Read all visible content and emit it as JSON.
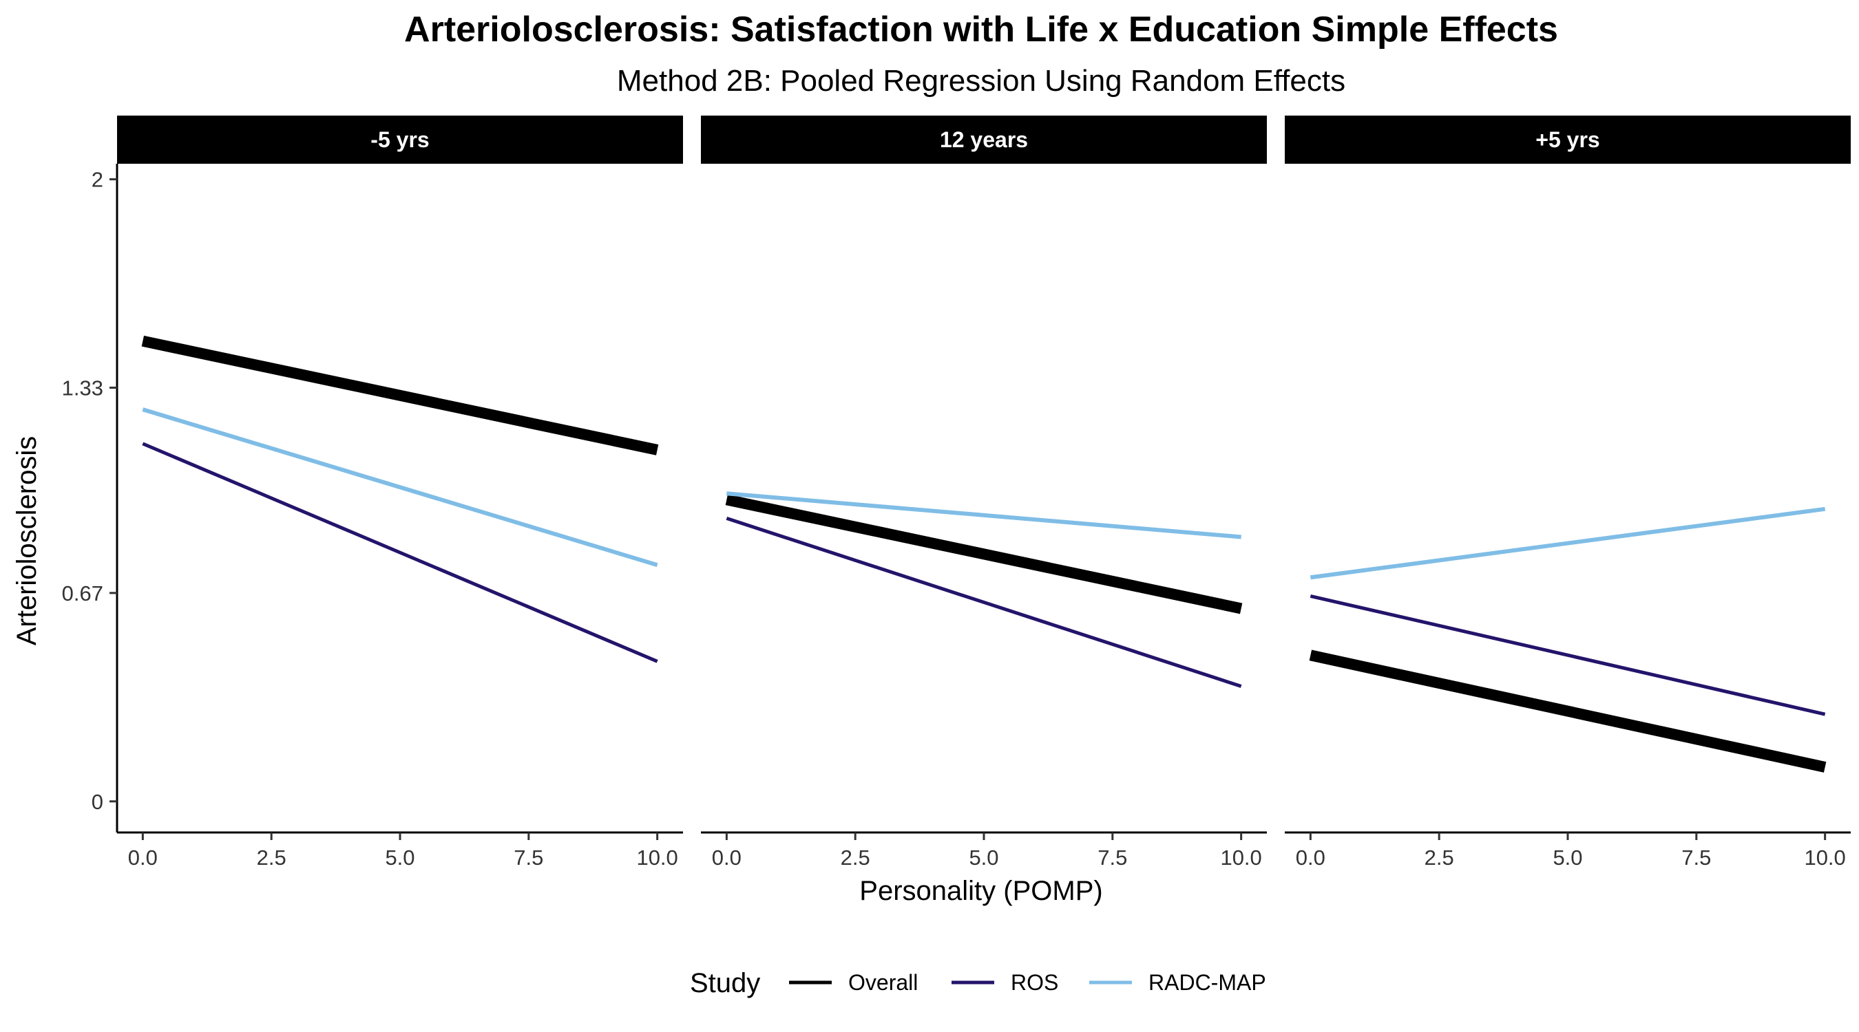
{
  "chart_data": {
    "type": "line",
    "title": "Arteriolosclerosis: Satisfaction with Life x Education Simple Effects",
    "subtitle": "Method 2B: Pooled Regression Using Random Effects",
    "xlabel": "Personality (POMP)",
    "ylabel": "Arteriolosclerosis",
    "xlim": [
      -0.5,
      10.5
    ],
    "ylim": [
      -0.1,
      2.05
    ],
    "x_ticks": [
      0.0,
      2.5,
      5.0,
      7.5,
      10.0
    ],
    "x_tick_labels": [
      "0.0",
      "2.5",
      "5.0",
      "7.5",
      "10.0"
    ],
    "y_ticks": [
      0,
      0.67,
      1.33,
      2
    ],
    "y_tick_labels": [
      "0",
      "0.67",
      "1.33",
      "2"
    ],
    "grid": false,
    "legend": {
      "title": "Study",
      "position": "bottom",
      "entries": [
        "Overall",
        "ROS",
        "RADC-MAP"
      ]
    },
    "colors": {
      "Overall": "#000000",
      "ROS": "#24146b",
      "RADC-MAP": "#7fbde6"
    },
    "panels": [
      {
        "label": "-5 yrs",
        "series": [
          {
            "name": "Overall",
            "x": [
              0,
              10
            ],
            "y": [
              1.48,
              1.13
            ]
          },
          {
            "name": "ROS",
            "x": [
              0,
              10
            ],
            "y": [
              1.15,
              0.45
            ]
          },
          {
            "name": "RADC-MAP",
            "x": [
              0,
              10
            ],
            "y": [
              1.26,
              0.76
            ]
          }
        ]
      },
      {
        "label": "12 years",
        "series": [
          {
            "name": "Overall",
            "x": [
              0,
              10
            ],
            "y": [
              0.97,
              0.62
            ]
          },
          {
            "name": "ROS",
            "x": [
              0,
              10
            ],
            "y": [
              0.91,
              0.37
            ]
          },
          {
            "name": "RADC-MAP",
            "x": [
              0,
              10
            ],
            "y": [
              0.99,
              0.85
            ]
          }
        ]
      },
      {
        "label": "+5 yrs",
        "series": [
          {
            "name": "Overall",
            "x": [
              0,
              10
            ],
            "y": [
              0.47,
              0.11
            ]
          },
          {
            "name": "ROS",
            "x": [
              0,
              10
            ],
            "y": [
              0.66,
              0.28
            ]
          },
          {
            "name": "RADC-MAP",
            "x": [
              0,
              10
            ],
            "y": [
              0.72,
              0.94
            ]
          }
        ]
      }
    ]
  }
}
